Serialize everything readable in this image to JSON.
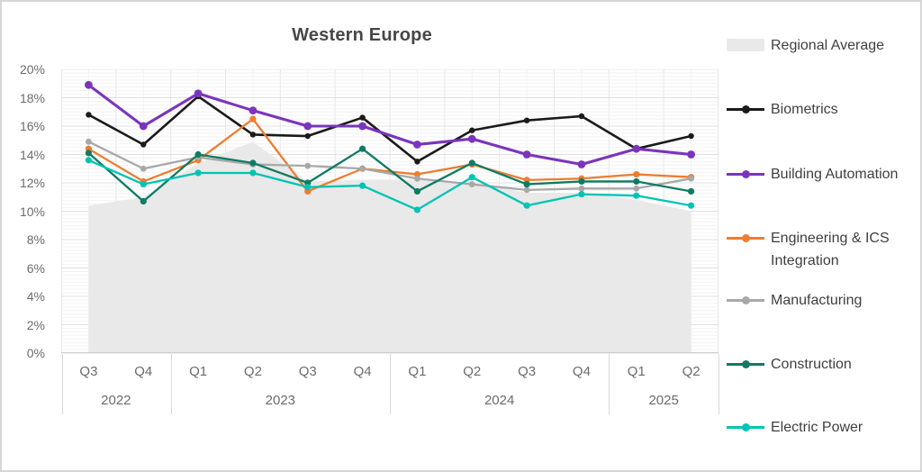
{
  "title": "Western Europe",
  "chart_data": {
    "type": "line",
    "title": "Western Europe",
    "y_axis": {
      "min": 0,
      "max": 20,
      "major_step": 2,
      "tick_suffix": "%",
      "tick_labels": [
        "0%",
        "2%",
        "4%",
        "6%",
        "8%",
        "10%",
        "12%",
        "14%",
        "16%",
        "18%",
        "20%"
      ]
    },
    "x_categories": [
      {
        "quarter": "Q3",
        "year": "2022"
      },
      {
        "quarter": "Q4",
        "year": "2022"
      },
      {
        "quarter": "Q1",
        "year": "2023"
      },
      {
        "quarter": "Q2",
        "year": "2023"
      },
      {
        "quarter": "Q3",
        "year": "2023"
      },
      {
        "quarter": "Q4",
        "year": "2023"
      },
      {
        "quarter": "Q1",
        "year": "2024"
      },
      {
        "quarter": "Q2",
        "year": "2024"
      },
      {
        "quarter": "Q3",
        "year": "2024"
      },
      {
        "quarter": "Q4",
        "year": "2024"
      },
      {
        "quarter": "Q1",
        "year": "2025"
      },
      {
        "quarter": "Q2",
        "year": "2025"
      }
    ],
    "area_series": {
      "name": "Regional Average",
      "color": "#e9e9e9",
      "values": [
        10.4,
        11.0,
        13.4,
        14.9,
        12.1,
        12.2,
        12.2,
        12.0,
        11.3,
        11.3,
        10.8,
        10.0
      ]
    },
    "series": [
      {
        "name": "Biometrics",
        "color": "#1a1a1a",
        "values": [
          16.8,
          14.7,
          18.1,
          15.4,
          15.3,
          16.6,
          13.5,
          15.7,
          16.4,
          16.7,
          14.4,
          15.3
        ]
      },
      {
        "name": "Building Automation",
        "color": "#7a35bc",
        "values": [
          18.9,
          16.0,
          18.3,
          17.1,
          16.0,
          16.0,
          14.7,
          15.1,
          14.0,
          13.3,
          14.4,
          14.0
        ]
      },
      {
        "name": "Engineering & ICS Integration",
        "color": "#ed7d31",
        "values": [
          14.4,
          12.1,
          13.6,
          16.5,
          11.4,
          13.0,
          12.6,
          13.3,
          12.2,
          12.3,
          12.6,
          12.4
        ]
      },
      {
        "name": "Manufacturing",
        "color": "#a8a8a8",
        "values": [
          14.9,
          13.0,
          13.8,
          13.3,
          13.2,
          13.0,
          12.3,
          11.9,
          11.5,
          11.6,
          11.6,
          12.3
        ]
      },
      {
        "name": "Construction",
        "color": "#0f7b64",
        "values": [
          14.1,
          10.7,
          14.0,
          13.4,
          12.0,
          14.4,
          11.4,
          13.4,
          11.9,
          12.1,
          12.1,
          11.4
        ]
      },
      {
        "name": "Electric Power",
        "color": "#00c4b3",
        "values": [
          13.6,
          11.9,
          12.7,
          12.7,
          11.7,
          11.8,
          10.1,
          12.4,
          10.4,
          11.2,
          11.1,
          10.4
        ]
      }
    ],
    "legend_position": "right",
    "grid": true
  }
}
